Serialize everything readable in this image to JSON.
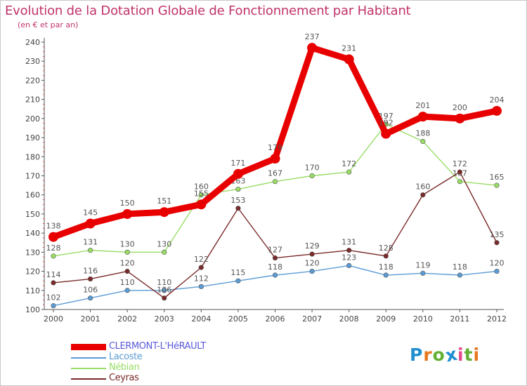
{
  "title": "Evolution de la Dotation Globale de Fonctionnement par Habitant",
  "subtitle": "(en € et par an)",
  "logo": {
    "text": "Proxiti",
    "letters": [
      "P",
      "r",
      "o",
      "x",
      "i",
      "t",
      "i"
    ],
    "colors": [
      "#1f8fd0",
      "#e8771e",
      "#62b033",
      "#1f8fd0",
      "#e34b8c",
      "#62b033",
      "#e8771e"
    ]
  },
  "chart_data": {
    "type": "line",
    "title": "Evolution de la Dotation Globale de Fonctionnement par Habitant",
    "subtitle": "(en € et par an)",
    "x": [
      "2000",
      "2001",
      "2002",
      "2003",
      "2004",
      "2005",
      "2006",
      "2007",
      "2008",
      "2009",
      "2010",
      "2011",
      "2012"
    ],
    "ylim": [
      100,
      240
    ],
    "yticks": [
      100,
      110,
      120,
      130,
      140,
      150,
      160,
      170,
      180,
      190,
      200,
      210,
      220,
      230,
      240
    ],
    "grid": false,
    "legend_position": "bottom-left",
    "series": [
      {
        "name": "CLERMONT-L'HéRAULT",
        "color": "#e80000",
        "emphasis": true,
        "values": [
          138,
          145,
          150,
          151,
          155,
          171,
          179,
          237,
          231,
          192,
          201,
          200,
          204
        ]
      },
      {
        "name": "Lacoste",
        "color": "#5b9bd5",
        "values": [
          102,
          106,
          110,
          110,
          112,
          115,
          118,
          120,
          123,
          118,
          119,
          118,
          120
        ]
      },
      {
        "name": "Nébian",
        "color": "#99dd66",
        "values": [
          128,
          131,
          130,
          130,
          160,
          163,
          167,
          170,
          172,
          197,
          188,
          167,
          165
        ]
      },
      {
        "name": "Ceyras",
        "color": "#7a2a2a",
        "values": [
          114,
          116,
          120,
          106,
          122,
          153,
          127,
          129,
          131,
          128,
          160,
          172,
          135
        ]
      }
    ]
  }
}
